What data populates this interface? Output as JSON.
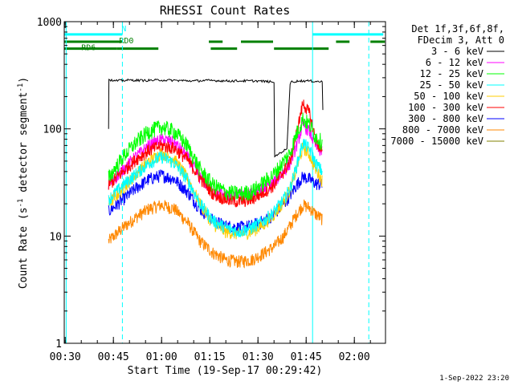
{
  "chart_data": {
    "type": "line",
    "title": "RHESSI Count Rates",
    "xlabel": "Start Time (19-Sep-17 00:29:42)",
    "ylabel": "Count Rate (s⁻¹ detector segment⁻¹)",
    "ylabel_main": "Count Rate (s",
    "ylabel_mid": " detector segment",
    "ylabel_end": ")",
    "ylabel_sup": "-1",
    "y_scale": "log",
    "ylim": [
      1,
      1000
    ],
    "xlim": [
      29.7,
      129.7
    ],
    "x_unit": "minutes after 00:00 UT",
    "x_ticks": [
      {
        "value": 30,
        "label": "00:30"
      },
      {
        "value": 45,
        "label": "00:45"
      },
      {
        "value": 60,
        "label": "01:00"
      },
      {
        "value": 75,
        "label": "01:15"
      },
      {
        "value": 90,
        "label": "01:30"
      },
      {
        "value": 105,
        "label": "01:45"
      },
      {
        "value": 120,
        "label": "02:00"
      }
    ],
    "y_ticks": [
      {
        "value": 1,
        "label": "1"
      },
      {
        "value": 10,
        "label": "10"
      },
      {
        "value": 100,
        "label": "100"
      },
      {
        "value": 1000,
        "label": "1000"
      }
    ],
    "legend_header": [
      "Det 1f,3f,6f,8f,",
      "FDecim 3, Att 0"
    ],
    "legend_placement": "right",
    "series": [
      {
        "name": "3 - 6 keV",
        "color": "#000000",
        "x": [
          43.5,
          43.6,
          45,
          50,
          55,
          60,
          65,
          70,
          75,
          80,
          85,
          90,
          94,
          95,
          95.2,
          97,
          99,
          100,
          100.3,
          103,
          106,
          110,
          110.2
        ],
        "y": [
          100,
          290,
          280,
          285,
          283,
          285,
          283,
          280,
          283,
          280,
          280,
          280,
          275,
          270,
          55,
          60,
          65,
          260,
          275,
          280,
          280,
          275,
          150
        ]
      },
      {
        "name": "6 - 12 keV",
        "color": "#ff00ff",
        "x": [
          43.5,
          48,
          52,
          56,
          60,
          64,
          68,
          72,
          76,
          80,
          84,
          88,
          92,
          95,
          98,
          100,
          102,
          104,
          106,
          108,
          110
        ],
        "y": [
          30,
          42,
          55,
          70,
          80,
          75,
          55,
          35,
          26,
          24,
          24,
          25,
          28,
          32,
          40,
          48,
          70,
          110,
          95,
          70,
          60
        ]
      },
      {
        "name": "12 - 25 keV",
        "color": "#00ff00",
        "x": [
          43.5,
          48,
          52,
          56,
          60,
          64,
          68,
          72,
          76,
          80,
          84,
          88,
          92,
          95,
          98,
          100,
          102,
          104,
          106,
          108,
          110
        ],
        "y": [
          35,
          55,
          75,
          95,
          105,
          95,
          70,
          42,
          30,
          26,
          25,
          26,
          32,
          38,
          50,
          60,
          90,
          125,
          110,
          85,
          75
        ]
      },
      {
        "name": "25 - 50 keV",
        "color": "#00ffff",
        "x": [
          43.5,
          48,
          52,
          56,
          60,
          64,
          68,
          72,
          76,
          80,
          84,
          88,
          92,
          95,
          98,
          100,
          102,
          104,
          106,
          108,
          110
        ],
        "y": [
          22,
          30,
          38,
          48,
          55,
          48,
          34,
          20,
          14,
          12,
          11,
          12,
          14,
          17,
          22,
          28,
          45,
          75,
          65,
          48,
          40
        ]
      },
      {
        "name": "50 - 100 keV",
        "color": "#ffcc00",
        "x": [
          43.5,
          48,
          52,
          56,
          60,
          64,
          68,
          72,
          76,
          80,
          84,
          88,
          92,
          95,
          98,
          100,
          102,
          104,
          106,
          108,
          110
        ],
        "y": [
          20,
          28,
          38,
          50,
          60,
          52,
          35,
          20,
          13,
          11,
          10.5,
          11,
          13,
          16,
          21,
          27,
          42,
          68,
          58,
          42,
          33
        ]
      },
      {
        "name": "100 - 300 keV",
        "color": "#ff0000",
        "x": [
          43.5,
          48,
          52,
          56,
          60,
          64,
          68,
          72,
          76,
          80,
          84,
          88,
          92,
          95,
          98,
          100,
          102,
          104,
          106,
          108,
          110
        ],
        "y": [
          30,
          40,
          52,
          63,
          70,
          66,
          52,
          35,
          25,
          22,
          21,
          22,
          26,
          30,
          40,
          50,
          90,
          175,
          140,
          80,
          60
        ]
      },
      {
        "name": "300 - 800 keV",
        "color": "#0000ff",
        "x": [
          43.5,
          48,
          52,
          56,
          60,
          64,
          68,
          72,
          76,
          80,
          84,
          88,
          92,
          95,
          98,
          100,
          102,
          104,
          106,
          108,
          110
        ],
        "y": [
          17,
          22,
          28,
          34,
          37,
          34,
          26,
          18,
          14,
          12.5,
          12,
          12.5,
          14,
          16,
          20,
          24,
          30,
          36,
          34,
          31,
          30
        ]
      },
      {
        "name": "800 - 7000 keV",
        "color": "#ff8800",
        "x": [
          43.5,
          48,
          52,
          56,
          60,
          64,
          68,
          72,
          76,
          80,
          84,
          88,
          92,
          95,
          98,
          100,
          102,
          104,
          106,
          108,
          110
        ],
        "y": [
          9,
          12,
          15,
          18,
          19.5,
          18,
          13.5,
          9,
          7,
          6,
          5.8,
          6,
          7,
          8,
          10,
          12.5,
          16,
          19.5,
          18.5,
          16,
          14.5
        ]
      },
      {
        "name": "7000 - 15000 keV",
        "color": "#808000",
        "x": [],
        "y": []
      }
    ],
    "vertical_lines": [
      {
        "x": 30.3,
        "color": "#00ffff",
        "style": "solid"
      },
      {
        "x": 47.8,
        "color": "#00ffff",
        "style": "dashed"
      },
      {
        "x": 107.0,
        "color": "#00ffff",
        "style": "solid"
      },
      {
        "x": 124.5,
        "color": "#00ffff",
        "style": "dashed"
      }
    ],
    "flag_bars": [
      {
        "label": "N",
        "color": "#00ffff",
        "y": 760,
        "segments": [
          [
            29.7,
            47.8
          ],
          [
            107.0,
            129.0
          ]
        ]
      },
      {
        "label": "RD0",
        "color": "#008000",
        "y": 650,
        "segments": [
          [
            29.7,
            47.8
          ],
          [
            84.7,
            94.7
          ]
        ]
      },
      {
        "label": "RD6",
        "color": "#008000",
        "y": 560,
        "segments": [
          [
            46.0,
            59.0
          ],
          [
            75.3,
            83.5
          ],
          [
            95.0,
            112.0
          ]
        ]
      },
      {
        "label": "",
        "color": "#008000",
        "y": 650,
        "segments": [
          [
            74.7,
            79.0
          ],
          [
            114.3,
            118.5
          ],
          [
            125.0,
            129.5
          ]
        ]
      }
    ],
    "flag_segments_extra": [
      {
        "label": "",
        "color": "#008000",
        "y": 560,
        "segments": [
          [
            29.7,
            46.0
          ]
        ]
      }
    ]
  },
  "footer": {
    "timestamp": "1-Sep-2022 23:20"
  }
}
